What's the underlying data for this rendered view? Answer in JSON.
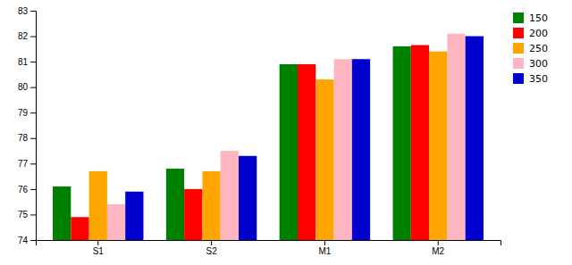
{
  "chart_data": {
    "type": "bar",
    "categories": [
      "S1",
      "S2",
      "M1",
      "M2"
    ],
    "series": [
      {
        "name": "150",
        "color": "#008000",
        "values": [
          76.1,
          76.8,
          80.9,
          81.6
        ]
      },
      {
        "name": "200",
        "color": "#ff0000",
        "values": [
          74.9,
          76.0,
          80.9,
          81.65
        ]
      },
      {
        "name": "250",
        "color": "#ffa500",
        "values": [
          76.7,
          76.7,
          80.3,
          81.4
        ]
      },
      {
        "name": "300",
        "color": "#ffb6c1",
        "values": [
          75.4,
          77.5,
          81.1,
          82.1
        ]
      },
      {
        "name": "350",
        "color": "#0000cd",
        "values": [
          75.9,
          77.3,
          81.1,
          82.0
        ]
      }
    ],
    "ylim": [
      74,
      83
    ],
    "yticks": [
      74,
      75,
      76,
      77,
      78,
      79,
      80,
      81,
      82,
      83
    ],
    "legend": "upper right"
  }
}
